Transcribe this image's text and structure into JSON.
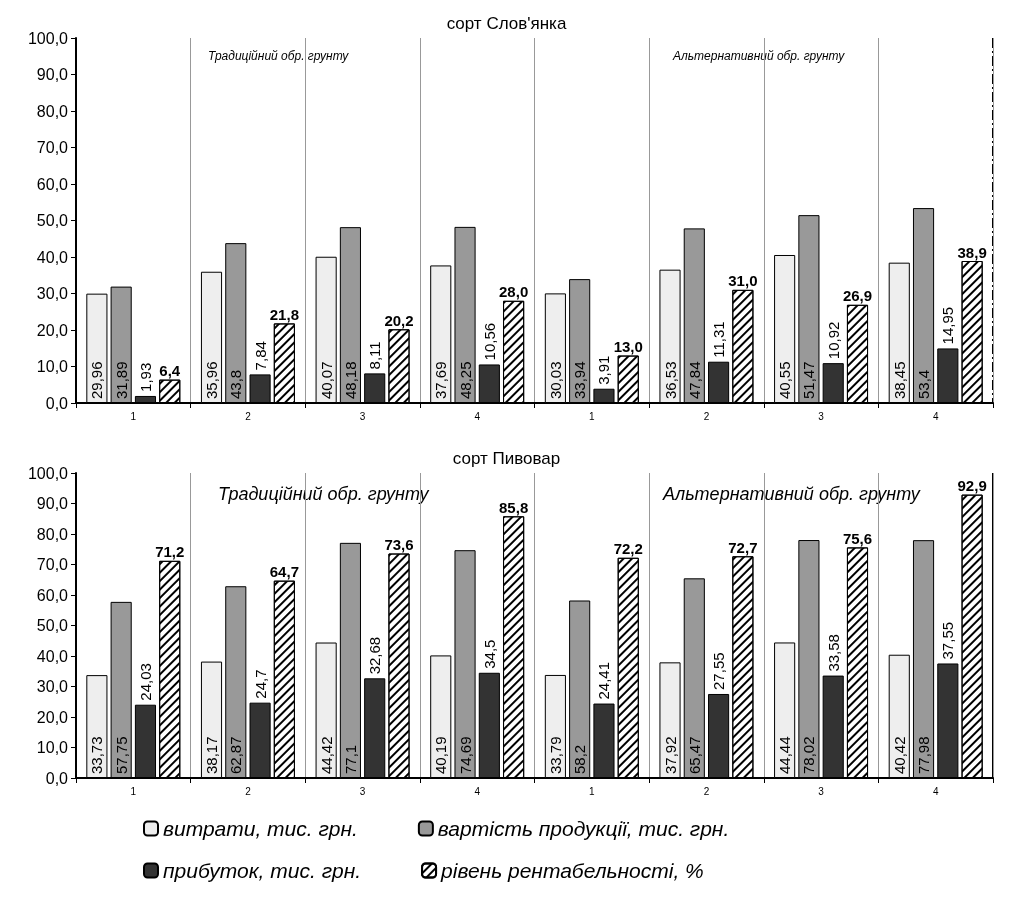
{
  "chart_data": [
    {
      "type": "bar",
      "title": "сорт Слов'янка",
      "categories": [
        "1",
        "2",
        "3",
        "4",
        "1",
        "2",
        "3",
        "4"
      ],
      "series": [
        {
          "color": "#eeeeee",
          "values": [
            29.96,
            35.96,
            40.07,
            37.69,
            30.03,
            36.53,
            40.55,
            38.45
          ],
          "value_labels": [
            "29,96",
            "35,96",
            "40,07",
            "37,69",
            "30,03",
            "36,53",
            "40,55",
            "38,45"
          ]
        },
        {
          "color": "#999999",
          "values": [
            31.89,
            43.8,
            48.18,
            48.25,
            33.94,
            47.84,
            51.47,
            53.4
          ],
          "value_labels": [
            "31,89",
            "43,8",
            "48,18",
            "48,25",
            "33,94",
            "47,84",
            "51,47",
            "53,4"
          ]
        },
        {
          "color": "#333333",
          "values": [
            1.93,
            7.84,
            8.11,
            10.56,
            3.91,
            11.31,
            10.92,
            14.95
          ],
          "value_labels": [
            "1,93",
            "7,84",
            "8,11",
            "10,56",
            "3,91",
            "11,31",
            "10,92",
            "14,95"
          ]
        },
        {
          "color": "#ffffff",
          "values": [
            6.4,
            21.8,
            20.2,
            28.0,
            13.0,
            31.0,
            26.9,
            38.9
          ],
          "value_labels": [
            "6,4",
            "21,8",
            "20,2",
            "28,0",
            "13,0",
            "31,0",
            "26,9",
            "38,9"
          ]
        }
      ],
      "ylim": [
        0,
        100
      ],
      "yticks": [
        {
          "value": 0,
          "label": "0,0"
        },
        {
          "value": 10,
          "label": "10,0"
        },
        {
          "value": 20,
          "label": "20,0"
        },
        {
          "value": 30,
          "label": "30,0"
        },
        {
          "value": 40,
          "label": "40,0"
        },
        {
          "value": 50,
          "label": "50,0"
        },
        {
          "value": 60,
          "label": "60,0"
        },
        {
          "value": 70,
          "label": "70,0"
        },
        {
          "value": 80,
          "label": "80,0"
        },
        {
          "value": 90,
          "label": "90,0"
        },
        {
          "value": 100,
          "label": "100,0"
        }
      ],
      "grid": "x",
      "legend": false,
      "annotations": [
        "Традиційний обр. грунту",
        "Альтернативний обр. грунту"
      ]
    },
    {
      "type": "bar",
      "title": "сорт Пивовар",
      "categories": [
        "1",
        "2",
        "3",
        "4",
        "1",
        "2",
        "3",
        "4"
      ],
      "series": [
        {
          "name": "витрати, тис. грн.",
          "color": "#eeeeee",
          "values": [
            33.73,
            38.17,
            44.42,
            40.19,
            33.79,
            37.92,
            44.44,
            40.42
          ],
          "value_labels": [
            "33,73",
            "38,17",
            "44,42",
            "40,19",
            "33,79",
            "37,92",
            "44,44",
            "40,42"
          ]
        },
        {
          "name": "вартість продукції, тис. грн.",
          "color": "#999999",
          "values": [
            57.75,
            62.87,
            77.1,
            74.69,
            58.2,
            65.47,
            78.02,
            77.98
          ],
          "value_labels": [
            "57,75",
            "62,87",
            "77,1",
            "74,69",
            "58,2",
            "65,47",
            "78,02",
            "77,98"
          ]
        },
        {
          "name": "прибуток, тис. грн.",
          "color": "#333333",
          "values": [
            24.03,
            24.7,
            32.68,
            34.5,
            24.41,
            27.55,
            33.58,
            37.55
          ],
          "value_labels": [
            "24,03",
            "24,7",
            "32,68",
            "34,5",
            "24,41",
            "27,55",
            "33,58",
            "37,55"
          ]
        },
        {
          "name": "рівень рентабельності, %",
          "color": "#ffffff",
          "values": [
            71.2,
            64.7,
            73.6,
            85.8,
            72.2,
            72.7,
            75.6,
            92.9
          ],
          "value_labels": [
            "71,2",
            "64,7",
            "73,6",
            "85,8",
            "72,2",
            "72,7",
            "75,6",
            "92,9"
          ]
        }
      ],
      "ylim": [
        0,
        100
      ],
      "yticks": [
        {
          "value": 0,
          "label": "0,0"
        },
        {
          "value": 10,
          "label": "10,0"
        },
        {
          "value": 20,
          "label": "20,0"
        },
        {
          "value": 30,
          "label": "30,0"
        },
        {
          "value": 40,
          "label": "40,0"
        },
        {
          "value": 50,
          "label": "50,0"
        },
        {
          "value": 60,
          "label": "60,0"
        },
        {
          "value": 70,
          "label": "70,0"
        },
        {
          "value": 80,
          "label": "80,0"
        },
        {
          "value": 90,
          "label": "90,0"
        },
        {
          "value": 100,
          "label": "100,0"
        }
      ],
      "grid": "x",
      "legend": "bottom",
      "annotations": [
        "Традиційний обр. грунту",
        "Альтернативний обр. грунту"
      ]
    }
  ]
}
